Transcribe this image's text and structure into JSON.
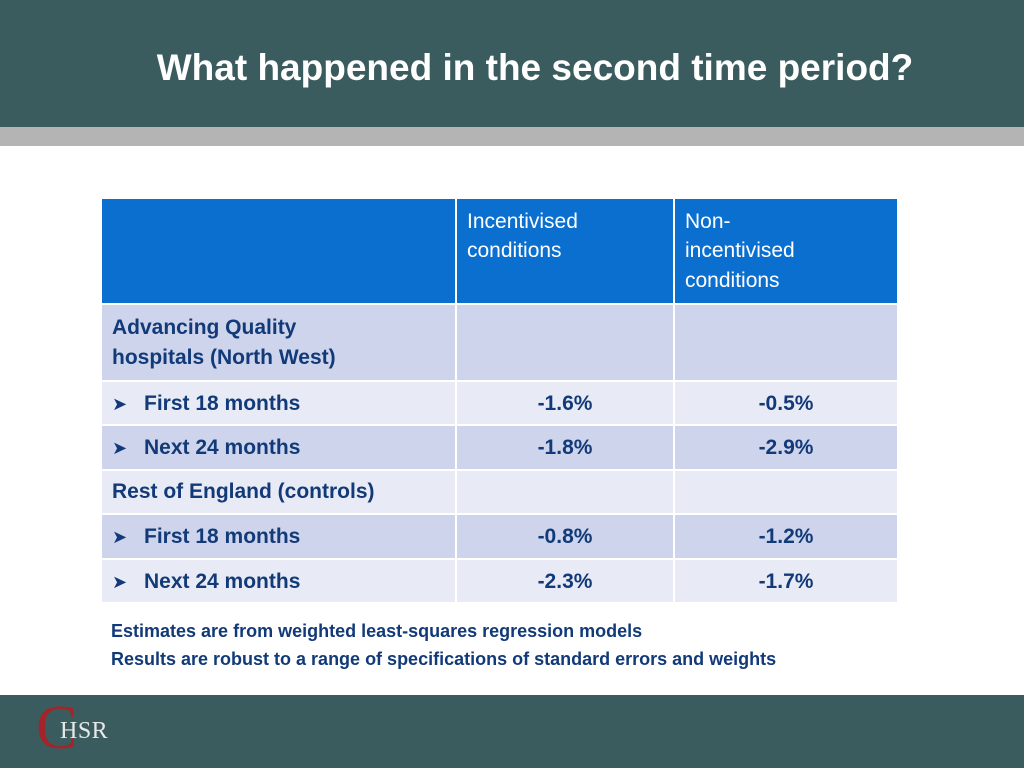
{
  "title": "What happened in the second time period?",
  "table": {
    "headers": [
      "",
      "Incentivised conditions",
      "Non-incentivised conditions"
    ],
    "header_lines": {
      "col2": [
        "Incentivised",
        "conditions"
      ],
      "col3": [
        "Non-",
        "incentivised",
        "conditions"
      ]
    },
    "rows": [
      {
        "label": "Advancing Quality hospitals (North West)",
        "label_lines": [
          "Advancing Quality",
          "hospitals (North West)"
        ],
        "incentivised": "",
        "non_incentivised": ""
      },
      {
        "label": "First 18 months",
        "incentivised": "-1.6%",
        "non_incentivised": "-0.5%"
      },
      {
        "label": "Next 24 months",
        "incentivised": "-1.8%",
        "non_incentivised": "-2.9%"
      },
      {
        "label": "Rest of England (controls)",
        "incentivised": "",
        "non_incentivised": ""
      },
      {
        "label": "First 18 months",
        "incentivised": "-0.8%",
        "non_incentivised": "-1.2%"
      },
      {
        "label": "Next 24 months",
        "incentivised": "-2.3%",
        "non_incentivised": "-1.7%"
      }
    ],
    "bullet_icon": "arrow-right-icon"
  },
  "notes": [
    "Estimates are from weighted least-squares regression models",
    "Results are robust to a range of specifications of standard errors and weights"
  ],
  "logo": {
    "initial": "C",
    "rest": "HSR"
  },
  "colors": {
    "header_bg": "#3b5c5e",
    "table_header_bg": "#0b6fcf",
    "row_dark": "#cdd4ec",
    "row_light": "#e8ebf5",
    "text_navy": "#123a78",
    "logo_red": "#a3242b"
  }
}
